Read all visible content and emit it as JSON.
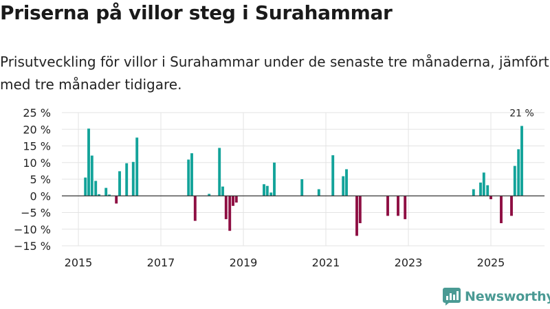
{
  "header": {
    "title": "Priserna på villor steg i Surahammar",
    "subtitle": "Prisutveckling för villor i Surahammar under de senaste tre månaderna, jämfört med tre månader tidigare."
  },
  "chart_data": {
    "type": "bar",
    "ylim": [
      -15,
      25
    ],
    "yticks": [
      -15,
      -10,
      -5,
      0,
      5,
      10,
      15,
      20,
      25
    ],
    "ytick_labels": [
      "−15 %",
      "−10 %",
      "−5 %",
      "0 %",
      "5 %",
      "10 %",
      "15 %",
      "20 %",
      "25 %"
    ],
    "xlim": [
      2014.6,
      2026.3
    ],
    "xticks": [
      2015,
      2017,
      2019,
      2021,
      2023,
      2025
    ],
    "xtick_labels": [
      "2015",
      "2017",
      "2019",
      "2021",
      "2023",
      "2025"
    ],
    "grid": true,
    "positive_color": "#13a39a",
    "negative_color": "#8e0f43",
    "annotation": {
      "text": "21 %",
      "x": 2025.75
    },
    "points": [
      {
        "x": 2015.17,
        "y": 5.5
      },
      {
        "x": 2015.25,
        "y": 20.2
      },
      {
        "x": 2015.33,
        "y": 12.1
      },
      {
        "x": 2015.42,
        "y": 4.5
      },
      {
        "x": 2015.5,
        "y": 0.5
      },
      {
        "x": 2015.67,
        "y": 2.4
      },
      {
        "x": 2015.75,
        "y": 0.4
      },
      {
        "x": 2015.92,
        "y": -2.3
      },
      {
        "x": 2016.0,
        "y": 7.4
      },
      {
        "x": 2016.17,
        "y": 9.8
      },
      {
        "x": 2016.33,
        "y": 10.2
      },
      {
        "x": 2016.42,
        "y": 17.5
      },
      {
        "x": 2017.67,
        "y": 10.9
      },
      {
        "x": 2017.75,
        "y": 12.8
      },
      {
        "x": 2017.83,
        "y": -7.5
      },
      {
        "x": 2018.17,
        "y": 0.6
      },
      {
        "x": 2018.42,
        "y": 14.4
      },
      {
        "x": 2018.5,
        "y": 2.8
      },
      {
        "x": 2018.58,
        "y": -7.0
      },
      {
        "x": 2018.67,
        "y": -10.5
      },
      {
        "x": 2018.75,
        "y": -3.0
      },
      {
        "x": 2018.83,
        "y": -2.0
      },
      {
        "x": 2019.5,
        "y": 3.5
      },
      {
        "x": 2019.58,
        "y": 3.0
      },
      {
        "x": 2019.67,
        "y": 1.0
      },
      {
        "x": 2019.75,
        "y": 10.0
      },
      {
        "x": 2020.42,
        "y": 5.0
      },
      {
        "x": 2020.83,
        "y": 2.0
      },
      {
        "x": 2021.17,
        "y": 12.2
      },
      {
        "x": 2021.42,
        "y": 5.9
      },
      {
        "x": 2021.5,
        "y": 8.0
      },
      {
        "x": 2021.75,
        "y": -12.0
      },
      {
        "x": 2021.83,
        "y": -8.2
      },
      {
        "x": 2022.5,
        "y": -6.0
      },
      {
        "x": 2022.75,
        "y": -6.0
      },
      {
        "x": 2022.92,
        "y": -7.0
      },
      {
        "x": 2024.58,
        "y": 2.0
      },
      {
        "x": 2024.75,
        "y": 4.0
      },
      {
        "x": 2024.83,
        "y": 7.0
      },
      {
        "x": 2024.92,
        "y": 3.2
      },
      {
        "x": 2025.0,
        "y": -1.0
      },
      {
        "x": 2025.25,
        "y": -8.2
      },
      {
        "x": 2025.5,
        "y": -6.0
      },
      {
        "x": 2025.58,
        "y": 9.0
      },
      {
        "x": 2025.67,
        "y": 14.0
      },
      {
        "x": 2025.75,
        "y": 21.0
      }
    ]
  },
  "brand": {
    "name": "Newsworthy",
    "logo_color": "#4a9a94",
    "icon": "bar-chart-logo-icon"
  }
}
